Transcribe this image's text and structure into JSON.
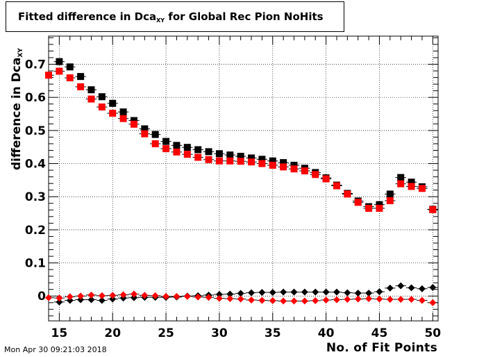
{
  "chart_data": {
    "type": "scatter",
    "title_main": "Fitted difference in Dca",
    "title_sub": "XY",
    "title_rest": " for Global Rec Pion NoHits",
    "xlabel": "No. of Fit Points",
    "ylabel_main": "difference in Dca",
    "ylabel_sub": "XY",
    "xlim": [
      14,
      50.5
    ],
    "ylim": [
      -0.075,
      0.785
    ],
    "xticks": [
      15,
      20,
      25,
      30,
      35,
      40,
      45,
      50
    ],
    "yticks": [
      0,
      0.1,
      0.2,
      0.3,
      0.4,
      0.5,
      0.6,
      0.7
    ],
    "ytick_labels": [
      "0",
      "0.1",
      "0.2",
      "0.3",
      "0.4",
      "0.5",
      "0.6",
      "0.7"
    ],
    "grid": true,
    "timestamp": "Mon Apr 30 09:21:03 2018",
    "x": [
      14,
      15,
      16,
      17,
      18,
      19,
      20,
      21,
      22,
      23,
      24,
      25,
      26,
      27,
      28,
      29,
      30,
      31,
      32,
      33,
      34,
      35,
      36,
      37,
      38,
      39,
      40,
      41,
      42,
      43,
      44,
      45,
      46,
      47,
      48,
      49,
      50
    ],
    "series": [
      {
        "marker": "square",
        "color": "#000000",
        "values": [
          null,
          0.708,
          0.692,
          0.663,
          0.623,
          0.602,
          0.582,
          0.556,
          0.53,
          0.505,
          0.488,
          0.467,
          0.455,
          0.449,
          0.442,
          0.436,
          0.43,
          0.426,
          0.422,
          0.417,
          0.413,
          0.408,
          0.403,
          0.395,
          0.386,
          0.373,
          0.357,
          0.335,
          0.31,
          0.287,
          0.27,
          0.276,
          0.308,
          0.358,
          0.344,
          0.33,
          0.262
        ]
      },
      {
        "marker": "square",
        "color": "#ff0000",
        "values": [
          0.667,
          0.679,
          0.659,
          0.632,
          0.595,
          0.571,
          0.552,
          0.536,
          0.519,
          0.49,
          0.46,
          0.445,
          0.435,
          0.428,
          0.419,
          0.412,
          0.408,
          0.408,
          0.407,
          0.405,
          0.4,
          0.395,
          0.39,
          0.384,
          0.378,
          0.367,
          0.354,
          0.333,
          0.308,
          0.283,
          0.265,
          0.265,
          0.288,
          0.339,
          0.331,
          0.325,
          0.261
        ]
      },
      {
        "marker": "diamond",
        "color": "#000000",
        "values": [
          null,
          -0.018,
          -0.013,
          -0.011,
          -0.011,
          -0.013,
          -0.009,
          -0.006,
          -0.005,
          -0.004,
          -0.004,
          -0.004,
          -0.003,
          0.0,
          0.001,
          0.003,
          0.005,
          0.006,
          0.008,
          0.01,
          0.011,
          0.011,
          0.012,
          0.012,
          0.012,
          0.012,
          0.012,
          0.012,
          0.01,
          0.009,
          0.009,
          0.013,
          0.024,
          0.031,
          0.025,
          0.022,
          0.026
        ]
      },
      {
        "marker": "diamond",
        "color": "#ff0000",
        "values": [
          -0.005,
          -0.006,
          -0.002,
          0.0,
          0.003,
          0.001,
          0.002,
          0.004,
          0.006,
          0.002,
          0.001,
          -0.001,
          -0.001,
          -0.001,
          -0.003,
          -0.004,
          -0.007,
          -0.008,
          -0.009,
          -0.012,
          -0.013,
          -0.014,
          -0.015,
          -0.015,
          -0.015,
          -0.014,
          -0.012,
          -0.011,
          -0.01,
          -0.009,
          -0.008,
          -0.009,
          -0.01,
          -0.01,
          -0.01,
          -0.013,
          -0.02
        ]
      }
    ]
  }
}
